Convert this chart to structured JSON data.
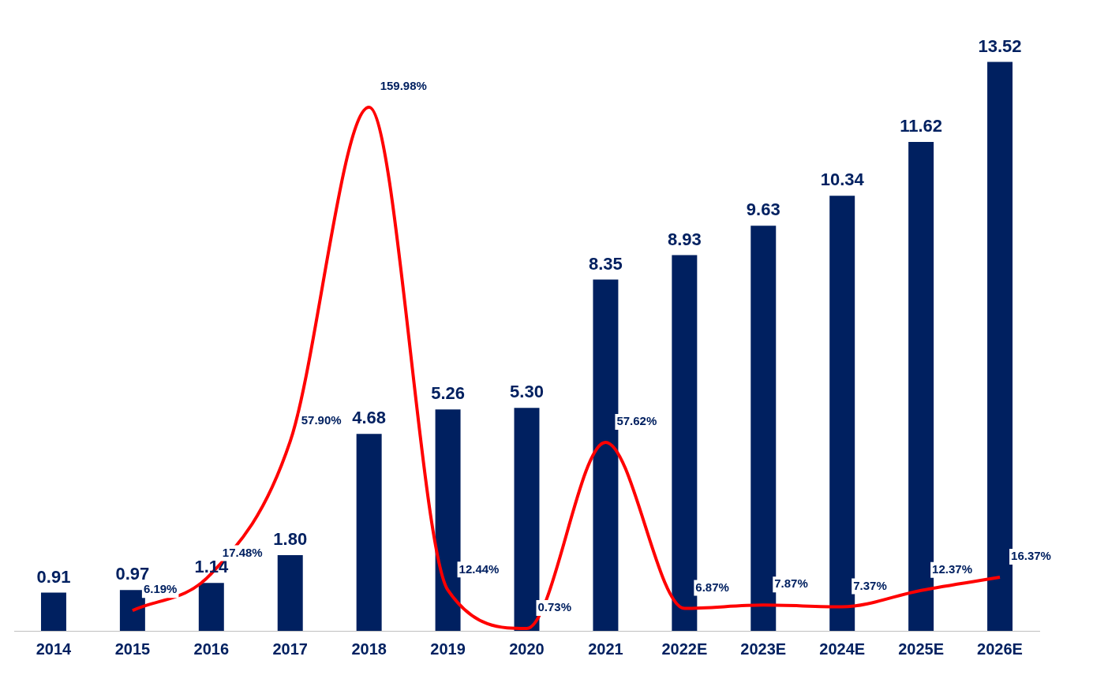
{
  "chart_data": {
    "type": "bar",
    "categories": [
      "2014",
      "2015",
      "2016",
      "2017",
      "2018",
      "2019",
      "2020",
      "2021",
      "2022E",
      "2023E",
      "2024E",
      "2025E",
      "2026E"
    ],
    "series": [
      {
        "type": "bar",
        "color": "#002060",
        "values": [
          0.91,
          0.97,
          1.14,
          1.8,
          4.68,
          5.26,
          5.3,
          8.35,
          8.93,
          9.63,
          10.34,
          11.62,
          13.52
        ],
        "value_labels": [
          "0.91",
          "0.97",
          "1.14",
          "1.80",
          "4.68",
          "5.26",
          "5.30",
          "8.35",
          "8.93",
          "9.63",
          "10.34",
          "11.62",
          "13.52"
        ]
      },
      {
        "type": "line",
        "axis": "y2",
        "color": "#ff0000",
        "values": [
          null,
          6.19,
          17.48,
          57.9,
          159.98,
          12.44,
          0.73,
          57.62,
          6.87,
          7.87,
          7.37,
          12.37,
          16.37
        ],
        "value_labels": [
          null,
          "6.19%",
          "17.48%",
          "57.90%",
          "159.98%",
          "12.44%",
          "0.73%",
          "57.62%",
          "6.87%",
          "7.87%",
          "7.37%",
          "12.37%",
          "16.37%"
        ]
      }
    ],
    "tick_labels": "x",
    "grid": false,
    "legend": false,
    "marker": "none",
    "line_style": "solid"
  }
}
